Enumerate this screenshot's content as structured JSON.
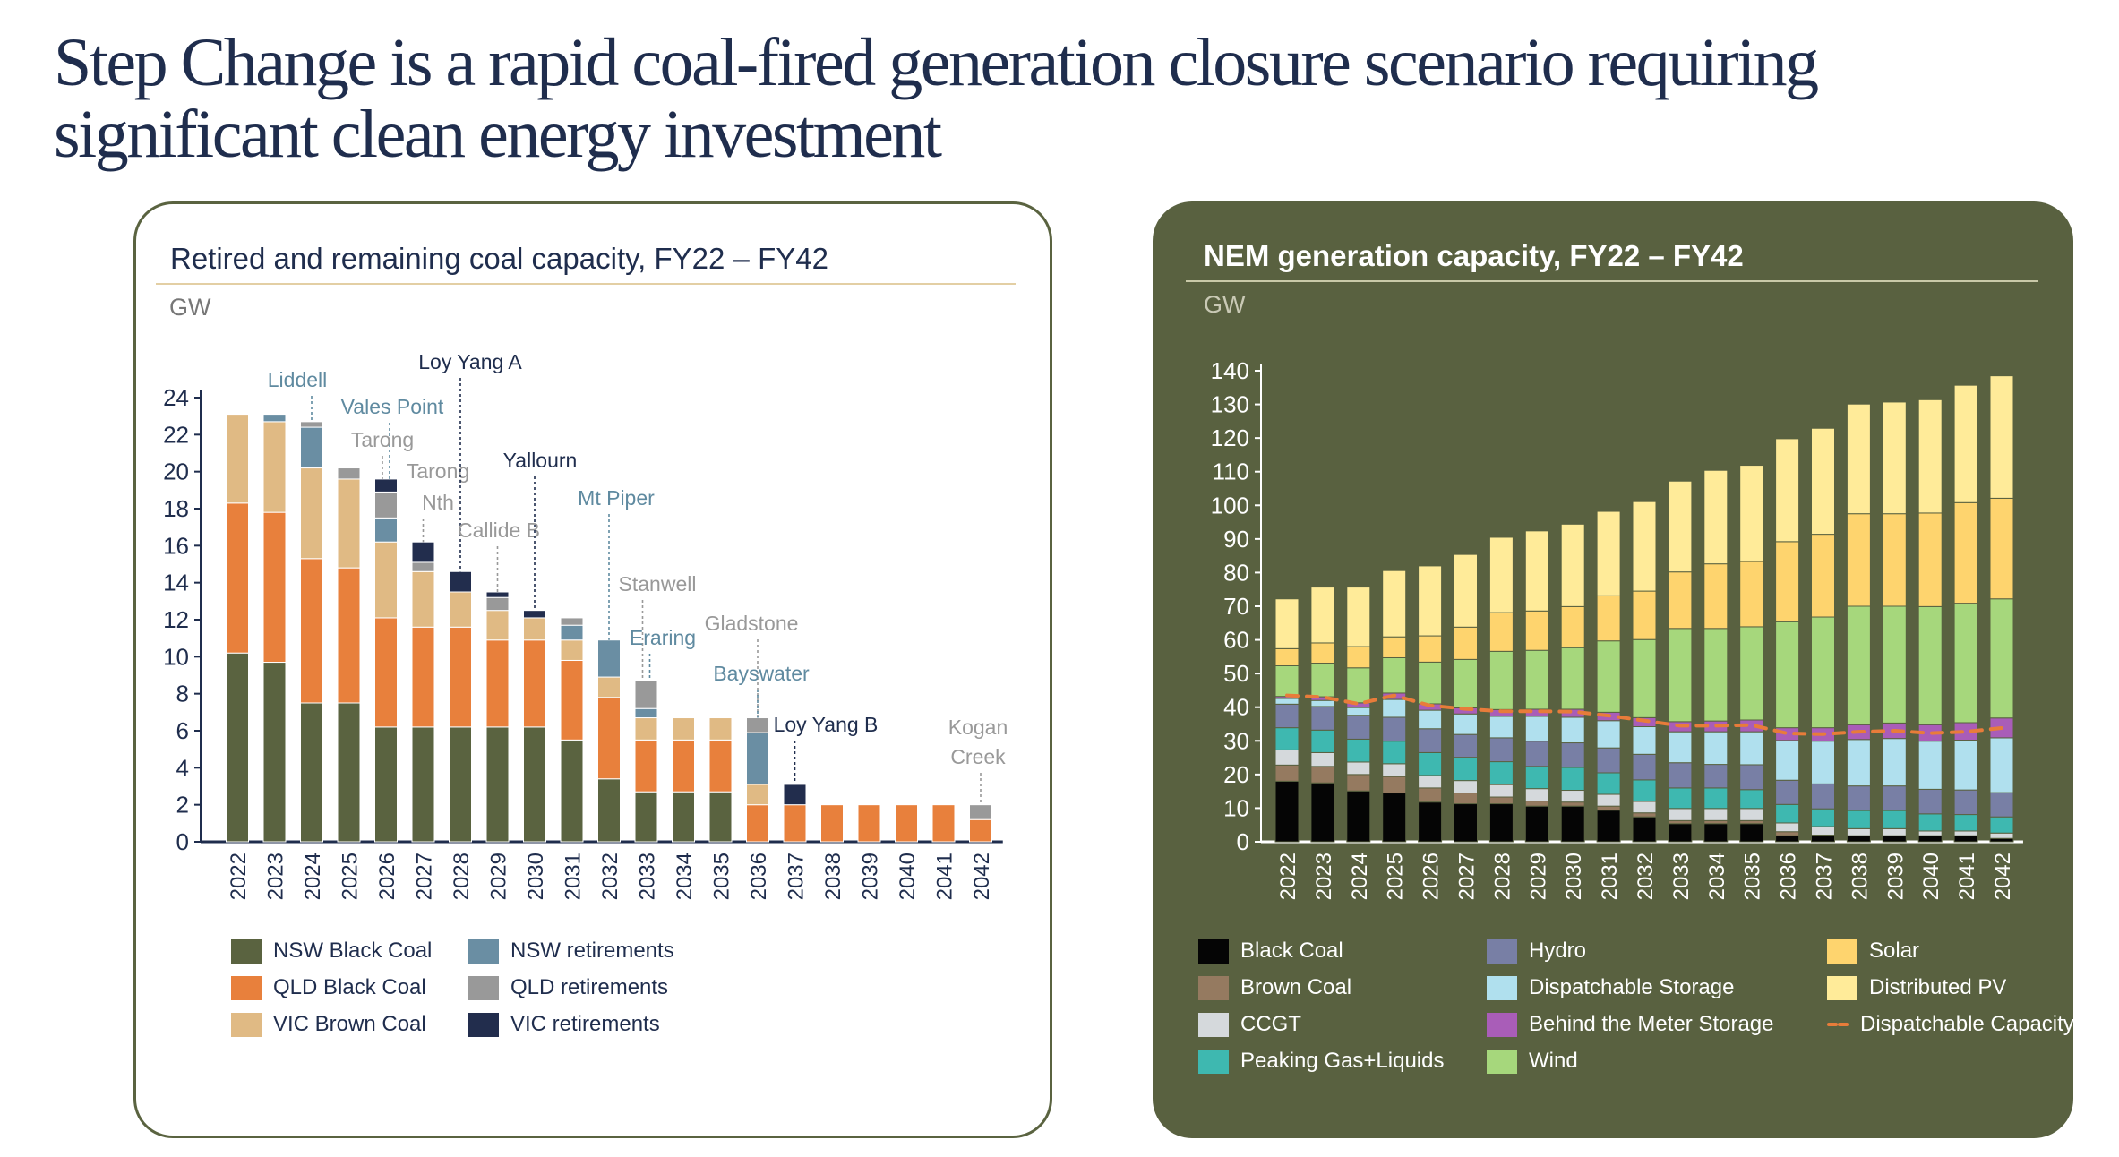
{
  "title_line1": "Step Change is a rapid coal-fired generation closure scenario requiring",
  "title_line2": "significant clean energy investment",
  "left": {
    "title": "Retired and remaining coal capacity, FY22 – FY42",
    "unit": "GW",
    "legend": [
      {
        "label": "NSW Black Coal",
        "color": "#5a6340"
      },
      {
        "label": "QLD Black Coal",
        "color": "#e8803c"
      },
      {
        "label": "VIC Brown Coal",
        "color": "#e0ba84"
      },
      {
        "label": "NSW retirements",
        "color": "#6a8ea3"
      },
      {
        "label": "QLD retirements",
        "color": "#999999"
      },
      {
        "label": "VIC retirements",
        "color": "#222d4d"
      }
    ]
  },
  "right": {
    "title": "NEM generation capacity, FY22 – FY42",
    "unit": "GW",
    "legend": [
      {
        "label": "Black Coal",
        "color": "#050505"
      },
      {
        "label": "Brown Coal",
        "color": "#957a60"
      },
      {
        "label": "CCGT",
        "color": "#d5d9dc"
      },
      {
        "label": "Peaking Gas+Liquids",
        "color": "#3eb8b0"
      },
      {
        "label": "Hydro",
        "color": "#787fa5"
      },
      {
        "label": "Dispatchable Storage",
        "color": "#b0e0ee"
      },
      {
        "label": "Behind the Meter Storage",
        "color": "#a95db8"
      },
      {
        "label": "Wind",
        "color": "#a6d77c"
      },
      {
        "label": "Solar",
        "color": "#fed46e"
      },
      {
        "label": "Distributed PV",
        "color": "#ffeb99"
      },
      {
        "label": "Dispatchable Capacity",
        "color": "#e87c3a",
        "style": "dashed-line"
      }
    ]
  },
  "chart_data": [
    {
      "type": "bar",
      "stacked": true,
      "title": "Retired and remaining coal capacity, FY22 – FY42",
      "ylabel": "GW",
      "ylim": [
        0,
        24
      ],
      "yticks": [
        0,
        2,
        4,
        6,
        8,
        10,
        12,
        14,
        16,
        18,
        20,
        22,
        24
      ],
      "categories": [
        "2022",
        "2023",
        "2024",
        "2025",
        "2026",
        "2027",
        "2028",
        "2029",
        "2030",
        "2031",
        "2032",
        "2033",
        "2034",
        "2035",
        "2036",
        "2037",
        "2038",
        "2039",
        "2040",
        "2041",
        "2042"
      ],
      "series": [
        {
          "name": "NSW Black Coal",
          "color": "#5a6340",
          "values": [
            10.2,
            9.7,
            7.5,
            7.5,
            6.2,
            6.2,
            6.2,
            6.2,
            6.2,
            5.5,
            3.4,
            2.7,
            2.7,
            2.7,
            0,
            0,
            0,
            0,
            0,
            0,
            0
          ]
        },
        {
          "name": "QLD Black Coal",
          "color": "#e8803c",
          "values": [
            8.1,
            8.1,
            7.8,
            7.3,
            5.9,
            5.4,
            5.4,
            4.7,
            4.7,
            4.3,
            4.4,
            2.8,
            2.8,
            2.8,
            2.0,
            2.0,
            2.0,
            2.0,
            2.0,
            2.0,
            1.2
          ]
        },
        {
          "name": "VIC Brown Coal",
          "color": "#e0ba84",
          "values": [
            4.8,
            4.9,
            4.9,
            4.8,
            4.1,
            3.0,
            1.9,
            1.6,
            1.2,
            1.1,
            1.1,
            1.2,
            1.2,
            1.2,
            1.1,
            0,
            0,
            0,
            0,
            0,
            0
          ]
        },
        {
          "name": "NSW retirements",
          "color": "#6a8ea3",
          "values": [
            0,
            0.4,
            2.2,
            0,
            1.3,
            0,
            0,
            0,
            0,
            0.8,
            2.0,
            0.5,
            0,
            0,
            2.8,
            0,
            0,
            0,
            0,
            0,
            0
          ]
        },
        {
          "name": "QLD retirements",
          "color": "#999999",
          "values": [
            0,
            0,
            0.3,
            0.6,
            1.4,
            0.5,
            0,
            0.7,
            0,
            0.4,
            0,
            1.5,
            0,
            0,
            0.8,
            0,
            0,
            0,
            0,
            0,
            0.8
          ]
        },
        {
          "name": "VIC retirements",
          "color": "#222d4d",
          "values": [
            0,
            0,
            0,
            0,
            0.7,
            1.1,
            1.1,
            0.3,
            0.4,
            0,
            0,
            0,
            0,
            0,
            0,
            1.1,
            0,
            0,
            0,
            0,
            0
          ]
        }
      ],
      "annotations": [
        {
          "text": "Liddell",
          "year": "2024",
          "group": "NSW"
        },
        {
          "text": "Vales Point",
          "year": "2026",
          "group": "NSW"
        },
        {
          "text": "Tarong",
          "year": "2026",
          "group": "QLD"
        },
        {
          "text": "Tarong Nth",
          "year": "2027",
          "group": "QLD"
        },
        {
          "text": "Loy Yang A",
          "year": "2028",
          "group": "VIC"
        },
        {
          "text": "Callide B",
          "year": "2029",
          "group": "QLD"
        },
        {
          "text": "Yallourn",
          "year": "2030",
          "group": "VIC"
        },
        {
          "text": "Mt Piper",
          "year": "2032",
          "group": "NSW"
        },
        {
          "text": "Stanwell",
          "year": "2033",
          "group": "QLD"
        },
        {
          "text": "Eraring",
          "year": "2033",
          "group": "NSW"
        },
        {
          "text": "Gladstone",
          "year": "2036",
          "group": "QLD"
        },
        {
          "text": "Bayswater",
          "year": "2036",
          "group": "NSW"
        },
        {
          "text": "Loy Yang B",
          "year": "2037",
          "group": "VIC"
        },
        {
          "text": "Kogan Creek",
          "year": "2042",
          "group": "QLD"
        }
      ],
      "annotation_colors": {
        "NSW": "#5f8aa0",
        "QLD": "#999999",
        "VIC": "#1f2d4d"
      },
      "legend_position": "bottom"
    },
    {
      "type": "bar",
      "stacked": true,
      "title": "NEM generation capacity, FY22 – FY42",
      "ylabel": "GW",
      "ylim": [
        0,
        140
      ],
      "yticks": [
        0,
        10,
        20,
        30,
        40,
        50,
        60,
        70,
        80,
        90,
        100,
        110,
        120,
        130,
        140
      ],
      "categories": [
        "2022",
        "2023",
        "2024",
        "2025",
        "2026",
        "2027",
        "2028",
        "2029",
        "2030",
        "2031",
        "2032",
        "2033",
        "2034",
        "2035",
        "2036",
        "2037",
        "2038",
        "2039",
        "2040",
        "2041",
        "2042"
      ],
      "series": [
        {
          "name": "Black Coal",
          "color": "#050505",
          "values": [
            18.0,
            17.5,
            15.1,
            14.5,
            11.8,
            11.3,
            11.3,
            10.6,
            10.6,
            9.4,
            7.4,
            5.4,
            5.4,
            5.4,
            1.8,
            1.8,
            1.8,
            1.8,
            1.8,
            1.8,
            1.0
          ]
        },
        {
          "name": "Brown Coal",
          "color": "#957a60",
          "values": [
            4.8,
            4.9,
            4.9,
            4.9,
            4.2,
            3.2,
            2.0,
            1.5,
            1.2,
            1.2,
            1.2,
            0.9,
            0.9,
            0.9,
            1.2,
            0.2,
            0,
            0,
            0,
            0,
            0
          ]
        },
        {
          "name": "CCGT",
          "color": "#d5d9dc",
          "values": [
            4.5,
            4.1,
            3.7,
            3.8,
            3.7,
            3.7,
            3.7,
            3.7,
            3.5,
            3.5,
            3.4,
            3.6,
            3.6,
            3.6,
            2.6,
            2.5,
            2.1,
            2.1,
            1.4,
            1.4,
            1.6
          ]
        },
        {
          "name": "Peaking Gas+Liquids",
          "color": "#3eb8b0",
          "values": [
            6.6,
            6.7,
            6.8,
            6.7,
            6.8,
            6.9,
            6.8,
            6.6,
            6.8,
            6.4,
            6.4,
            6.1,
            6.1,
            5.6,
            5.5,
            5.3,
            5.4,
            5.4,
            5.1,
            4.9,
            4.8
          ]
        },
        {
          "name": "Hydro",
          "color": "#787fa5",
          "values": [
            7.0,
            7.0,
            7.1,
            7.1,
            7.1,
            6.8,
            7.1,
            7.5,
            7.3,
            7.4,
            7.6,
            7.5,
            7.0,
            7.4,
            7.2,
            7.4,
            7.3,
            7.3,
            7.3,
            7.3,
            7.2
          ]
        },
        {
          "name": "Dispatchable Storage",
          "color": "#b0e0ee",
          "values": [
            1.7,
            1.8,
            2.3,
            5.3,
            5.5,
            6.1,
            6.4,
            7.4,
            7.6,
            8.1,
            8.2,
            9.2,
            9.7,
            9.8,
            11.8,
            12.7,
            13.8,
            14.1,
            14.3,
            14.8,
            16.3
          ]
        },
        {
          "name": "Behind the Meter Storage",
          "color": "#a95db8",
          "values": [
            0.6,
            1.1,
            1.4,
            1.9,
            1.9,
            1.8,
            2.0,
            2.1,
            2.4,
            2.5,
            2.7,
            3.0,
            3.2,
            3.5,
            3.8,
            4.0,
            4.4,
            4.6,
            4.9,
            5.2,
            5.9
          ]
        },
        {
          "name": "Wind",
          "color": "#a6d77c",
          "values": [
            9.1,
            10.0,
            10.4,
            10.5,
            12.4,
            14.4,
            17.3,
            17.5,
            18.3,
            21.2,
            23.2,
            27.7,
            27.5,
            27.7,
            31.5,
            32.9,
            35.2,
            34.7,
            35.1,
            35.5,
            35.4
          ]
        },
        {
          "name": "Solar",
          "color": "#fed46e",
          "values": [
            5.1,
            6.0,
            6.3,
            6.2,
            7.8,
            9.6,
            11.5,
            11.7,
            12.2,
            13.4,
            14.4,
            16.8,
            19.2,
            19.4,
            23.8,
            24.6,
            27.5,
            27.5,
            27.8,
            29.9,
            29.9
          ]
        },
        {
          "name": "Distributed PV",
          "color": "#ffeb99",
          "values": [
            14.8,
            16.6,
            17.7,
            19.7,
            20.8,
            21.6,
            22.4,
            23.8,
            24.5,
            25.1,
            26.6,
            27.0,
            27.8,
            28.6,
            30.6,
            31.5,
            32.6,
            33.2,
            33.7,
            34.9,
            36.4
          ]
        }
      ],
      "line": {
        "name": "Dispatchable Capacity",
        "color": "#e87c3a",
        "style": "dashed",
        "values": [
          43.5,
          43.0,
          41.0,
          43.5,
          40.5,
          39.5,
          38.8,
          38.8,
          38.7,
          37.5,
          36.0,
          34.5,
          34.5,
          34.7,
          32.2,
          32.0,
          32.7,
          33.0,
          32.3,
          32.7,
          33.8
        ]
      },
      "legend_position": "bottom"
    }
  ]
}
